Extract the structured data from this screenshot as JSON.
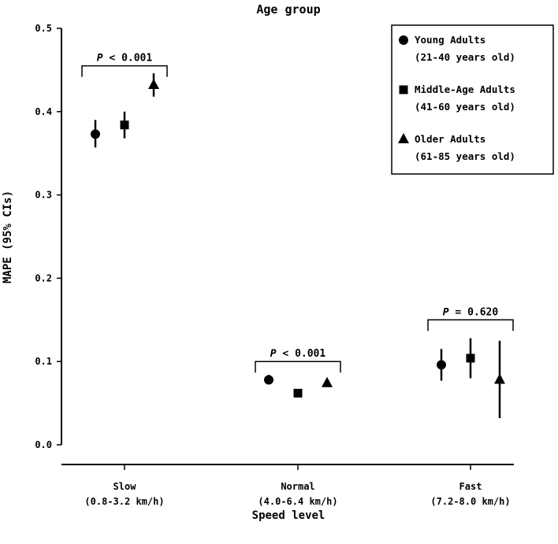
{
  "chart_data": {
    "type": "scatter",
    "title": "Age group",
    "xlabel": "Speed level",
    "ylabel": "MAPE (95% CIs)",
    "ylim": [
      0.0,
      0.5
    ],
    "yticks": [
      "0.0",
      "0.1",
      "0.2",
      "0.3",
      "0.4",
      "0.5"
    ],
    "categories": [
      {
        "line1": "Slow",
        "line2": "(0.8-3.2 km/h)"
      },
      {
        "line1": "Normal",
        "line2": "(4.0-6.4 km/h)"
      },
      {
        "line1": "Fast",
        "line2": "(7.2-8.0 km/h)"
      }
    ],
    "series": [
      {
        "name_line1": "Young Adults",
        "name_line2": "(21-40 years old)",
        "marker": "circle",
        "values": [
          0.373,
          0.078,
          0.096
        ],
        "ci_low": [
          0.357,
          0.073,
          0.077
        ],
        "ci_high": [
          0.39,
          0.084,
          0.115
        ]
      },
      {
        "name_line1": "Middle-Age Adults",
        "name_line2": "(41-60 years old)",
        "marker": "square",
        "values": [
          0.384,
          0.062,
          0.104
        ],
        "ci_low": [
          0.368,
          0.058,
          0.08
        ],
        "ci_high": [
          0.4,
          0.066,
          0.128
        ]
      },
      {
        "name_line1": "Older Adults",
        "name_line2": "(61-85 years old)",
        "marker": "triangle",
        "values": [
          0.432,
          0.074,
          0.078
        ],
        "ci_low": [
          0.418,
          0.07,
          0.032
        ],
        "ci_high": [
          0.446,
          0.078,
          0.125
        ]
      }
    ],
    "annotations": [
      {
        "category": 0,
        "italic": "P",
        "text": " < 0.001",
        "bracket_y": 0.455
      },
      {
        "category": 1,
        "italic": "P",
        "text": " < 0.001",
        "bracket_y": 0.1
      },
      {
        "category": 2,
        "italic": "P",
        "text": " = 0.620",
        "bracket_y": 0.15
      }
    ],
    "legend_position": "top-right",
    "grid": false
  }
}
